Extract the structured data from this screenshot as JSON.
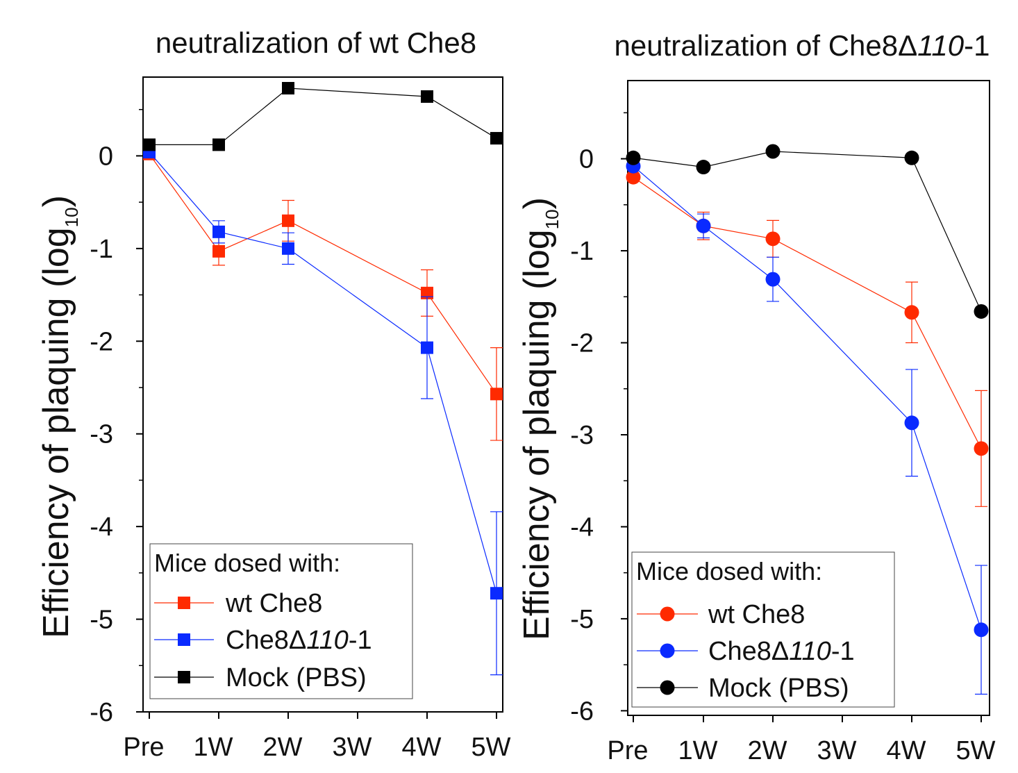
{
  "chart_data": [
    {
      "type": "line",
      "title_prefix": "neutralization of wt Che8",
      "title_italic": "",
      "title_suffix": "",
      "ylabel": "Efficiency of plaquing (log",
      "ylabel_sub": "10",
      "ylabel_close": ")",
      "x": [
        0,
        1,
        2,
        3,
        4,
        5
      ],
      "categories": [
        "Pre",
        "1W",
        "2W",
        "3W",
        "4W",
        "5W"
      ],
      "ylim": [
        -6,
        0.85
      ],
      "yticks": [
        0,
        -1,
        -2,
        -3,
        -4,
        -5,
        -6
      ],
      "ytick_labels": [
        "0",
        "-1",
        "-2",
        "-3",
        "-4",
        "-5",
        "-6"
      ],
      "marker": "square",
      "legend_title": "Mice dosed with:",
      "legend_position": "bottom-left",
      "series": [
        {
          "name": "wt Che8",
          "name_prefix": "wt Che8",
          "name_italic": "",
          "name_suffix": "",
          "color": "#ff2a00",
          "x": [
            0,
            1,
            2,
            4,
            5
          ],
          "values": [
            0.02,
            -1.03,
            -0.7,
            -1.48,
            -2.57
          ],
          "errors": [
            0,
            0.15,
            0.22,
            0.25,
            0.5
          ]
        },
        {
          "name": "Che8Δ110-1",
          "name_prefix": "Che8Δ",
          "name_italic": "110",
          "name_suffix": "-1",
          "color": "#0a2aff",
          "x": [
            0,
            1,
            2,
            4,
            5
          ],
          "values": [
            0.04,
            -0.82,
            -1.0,
            -2.07,
            -4.72
          ],
          "errors": [
            0,
            0.12,
            0.17,
            0.55,
            0.88
          ]
        },
        {
          "name": "Mock (PBS)",
          "name_prefix": "Mock (PBS)",
          "name_italic": "",
          "name_suffix": "",
          "color": "#000000",
          "x": [
            0,
            1,
            2,
            4,
            5
          ],
          "values": [
            0.12,
            0.12,
            0.73,
            0.64,
            0.19
          ],
          "errors": [
            0,
            0,
            0,
            0,
            0
          ]
        }
      ]
    },
    {
      "type": "line",
      "title_prefix": "neutralization of Che8Δ",
      "title_italic": "110",
      "title_suffix": "-1",
      "ylabel": "Efficiency of plaquing (log",
      "ylabel_sub": "10",
      "ylabel_close": ")",
      "x": [
        0,
        1,
        2,
        3,
        4,
        5
      ],
      "categories": [
        "Pre",
        "1W",
        "2W",
        "3W",
        "4W",
        "5W"
      ],
      "ylim": [
        -6.05,
        0.85
      ],
      "yticks": [
        0,
        -1,
        -2,
        -3,
        -4,
        -5,
        -6
      ],
      "ytick_labels": [
        "0",
        "-1",
        "-2",
        "-3",
        "-4",
        "-5",
        "-6"
      ],
      "marker": "circle",
      "legend_title": "Mice dosed with:",
      "legend_position": "bottom-left",
      "series": [
        {
          "name": "wt Che8",
          "name_prefix": "wt Che8",
          "name_italic": "",
          "name_suffix": "",
          "color": "#ff2a00",
          "x": [
            0,
            1,
            2,
            4,
            5
          ],
          "values": [
            -0.2,
            -0.73,
            -0.87,
            -1.67,
            -3.15
          ],
          "errors": [
            0,
            0.15,
            0.2,
            0.33,
            0.63
          ]
        },
        {
          "name": "Che8Δ110-1",
          "name_prefix": "Che8Δ",
          "name_italic": "110",
          "name_suffix": "-1",
          "color": "#0a2aff",
          "x": [
            0,
            1,
            2,
            4,
            5
          ],
          "values": [
            -0.08,
            -0.73,
            -1.31,
            -2.87,
            -5.12
          ],
          "errors": [
            0,
            0.13,
            0.24,
            0.58,
            0.7
          ]
        },
        {
          "name": "Mock (PBS)",
          "name_prefix": "Mock (PBS)",
          "name_italic": "",
          "name_suffix": "",
          "color": "#000000",
          "x": [
            0,
            1,
            2,
            4,
            5
          ],
          "values": [
            0.01,
            -0.09,
            0.08,
            0.01,
            -1.66
          ],
          "errors": [
            0,
            0,
            0,
            0,
            0
          ]
        }
      ]
    }
  ]
}
